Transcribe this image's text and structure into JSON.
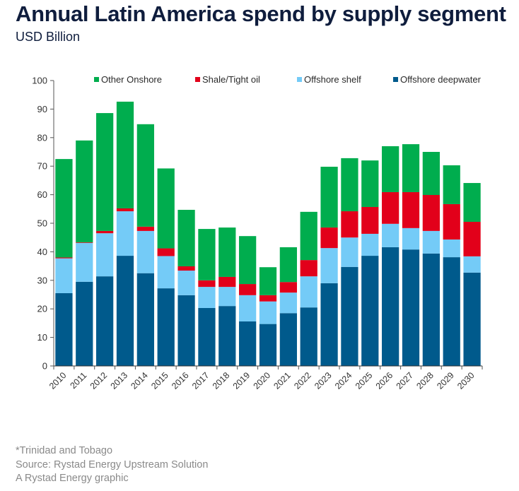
{
  "header": {
    "title": "Annual Latin America spend by supply segment",
    "subtitle": "USD Billion"
  },
  "footer": {
    "note": "*Trinidad and Tobago",
    "source": "Source: Rystad Energy Upstream Solution",
    "credit": "A Rystad Energy graphic"
  },
  "chart_data": {
    "type": "bar",
    "stacked": true,
    "title": "Annual Latin America spend by supply segment",
    "subtitle": "USD Billion",
    "xlabel": "",
    "ylabel": "USD Billion",
    "ylim": [
      0,
      100
    ],
    "yticks": [
      0,
      10,
      20,
      30,
      40,
      50,
      60,
      70,
      80,
      90,
      100
    ],
    "grid": false,
    "legend_position": "top",
    "categories": [
      "2010",
      "2011",
      "2012",
      "2013",
      "2014",
      "2015",
      "2016",
      "2017",
      "2018",
      "2019",
      "2020",
      "2021",
      "2022",
      "2023",
      "2024",
      "2025",
      "2026",
      "2027",
      "2028",
      "2029",
      "2030"
    ],
    "series": [
      {
        "name": "Offshore deepwater",
        "color": "#005a8c",
        "values": [
          25.5,
          29.5,
          31.4,
          38.6,
          32.5,
          27.2,
          24.8,
          20.3,
          21.0,
          15.6,
          14.7,
          18.5,
          20.5,
          29.0,
          34.7,
          38.6,
          41.6,
          40.8,
          39.4,
          38.1,
          32.7
        ]
      },
      {
        "name": "Offshore shelf",
        "color": "#74cbf7",
        "values": [
          12.2,
          13.6,
          15.1,
          15.6,
          14.8,
          11.3,
          8.6,
          7.4,
          6.7,
          9.2,
          7.9,
          7.2,
          10.9,
          12.3,
          10.3,
          7.7,
          8.2,
          7.5,
          7.9,
          6.2,
          5.7
        ]
      },
      {
        "name": "Shale/Tight oil",
        "color": "#e2001a",
        "values": [
          0.3,
          0.2,
          0.8,
          1.0,
          1.5,
          2.7,
          1.5,
          2.3,
          3.5,
          3.9,
          2.2,
          3.7,
          5.7,
          7.2,
          9.2,
          9.4,
          11.1,
          12.6,
          12.6,
          12.4,
          12.1
        ]
      },
      {
        "name": "Other Onshore",
        "color": "#00ad4e",
        "values": [
          34.5,
          35.7,
          41.3,
          37.4,
          35.9,
          28.0,
          19.8,
          18.0,
          17.3,
          16.8,
          9.8,
          12.2,
          16.9,
          21.3,
          18.6,
          16.3,
          16.1,
          16.8,
          15.1,
          13.6,
          13.6
        ]
      }
    ],
    "legend": [
      {
        "label": "Other Onshore",
        "color": "#00ad4e"
      },
      {
        "label": "Shale/Tight oil",
        "color": "#e2001a"
      },
      {
        "label": "Offshore shelf",
        "color": "#74cbf7"
      },
      {
        "label": "Offshore deepwater",
        "color": "#005a8c"
      }
    ]
  }
}
